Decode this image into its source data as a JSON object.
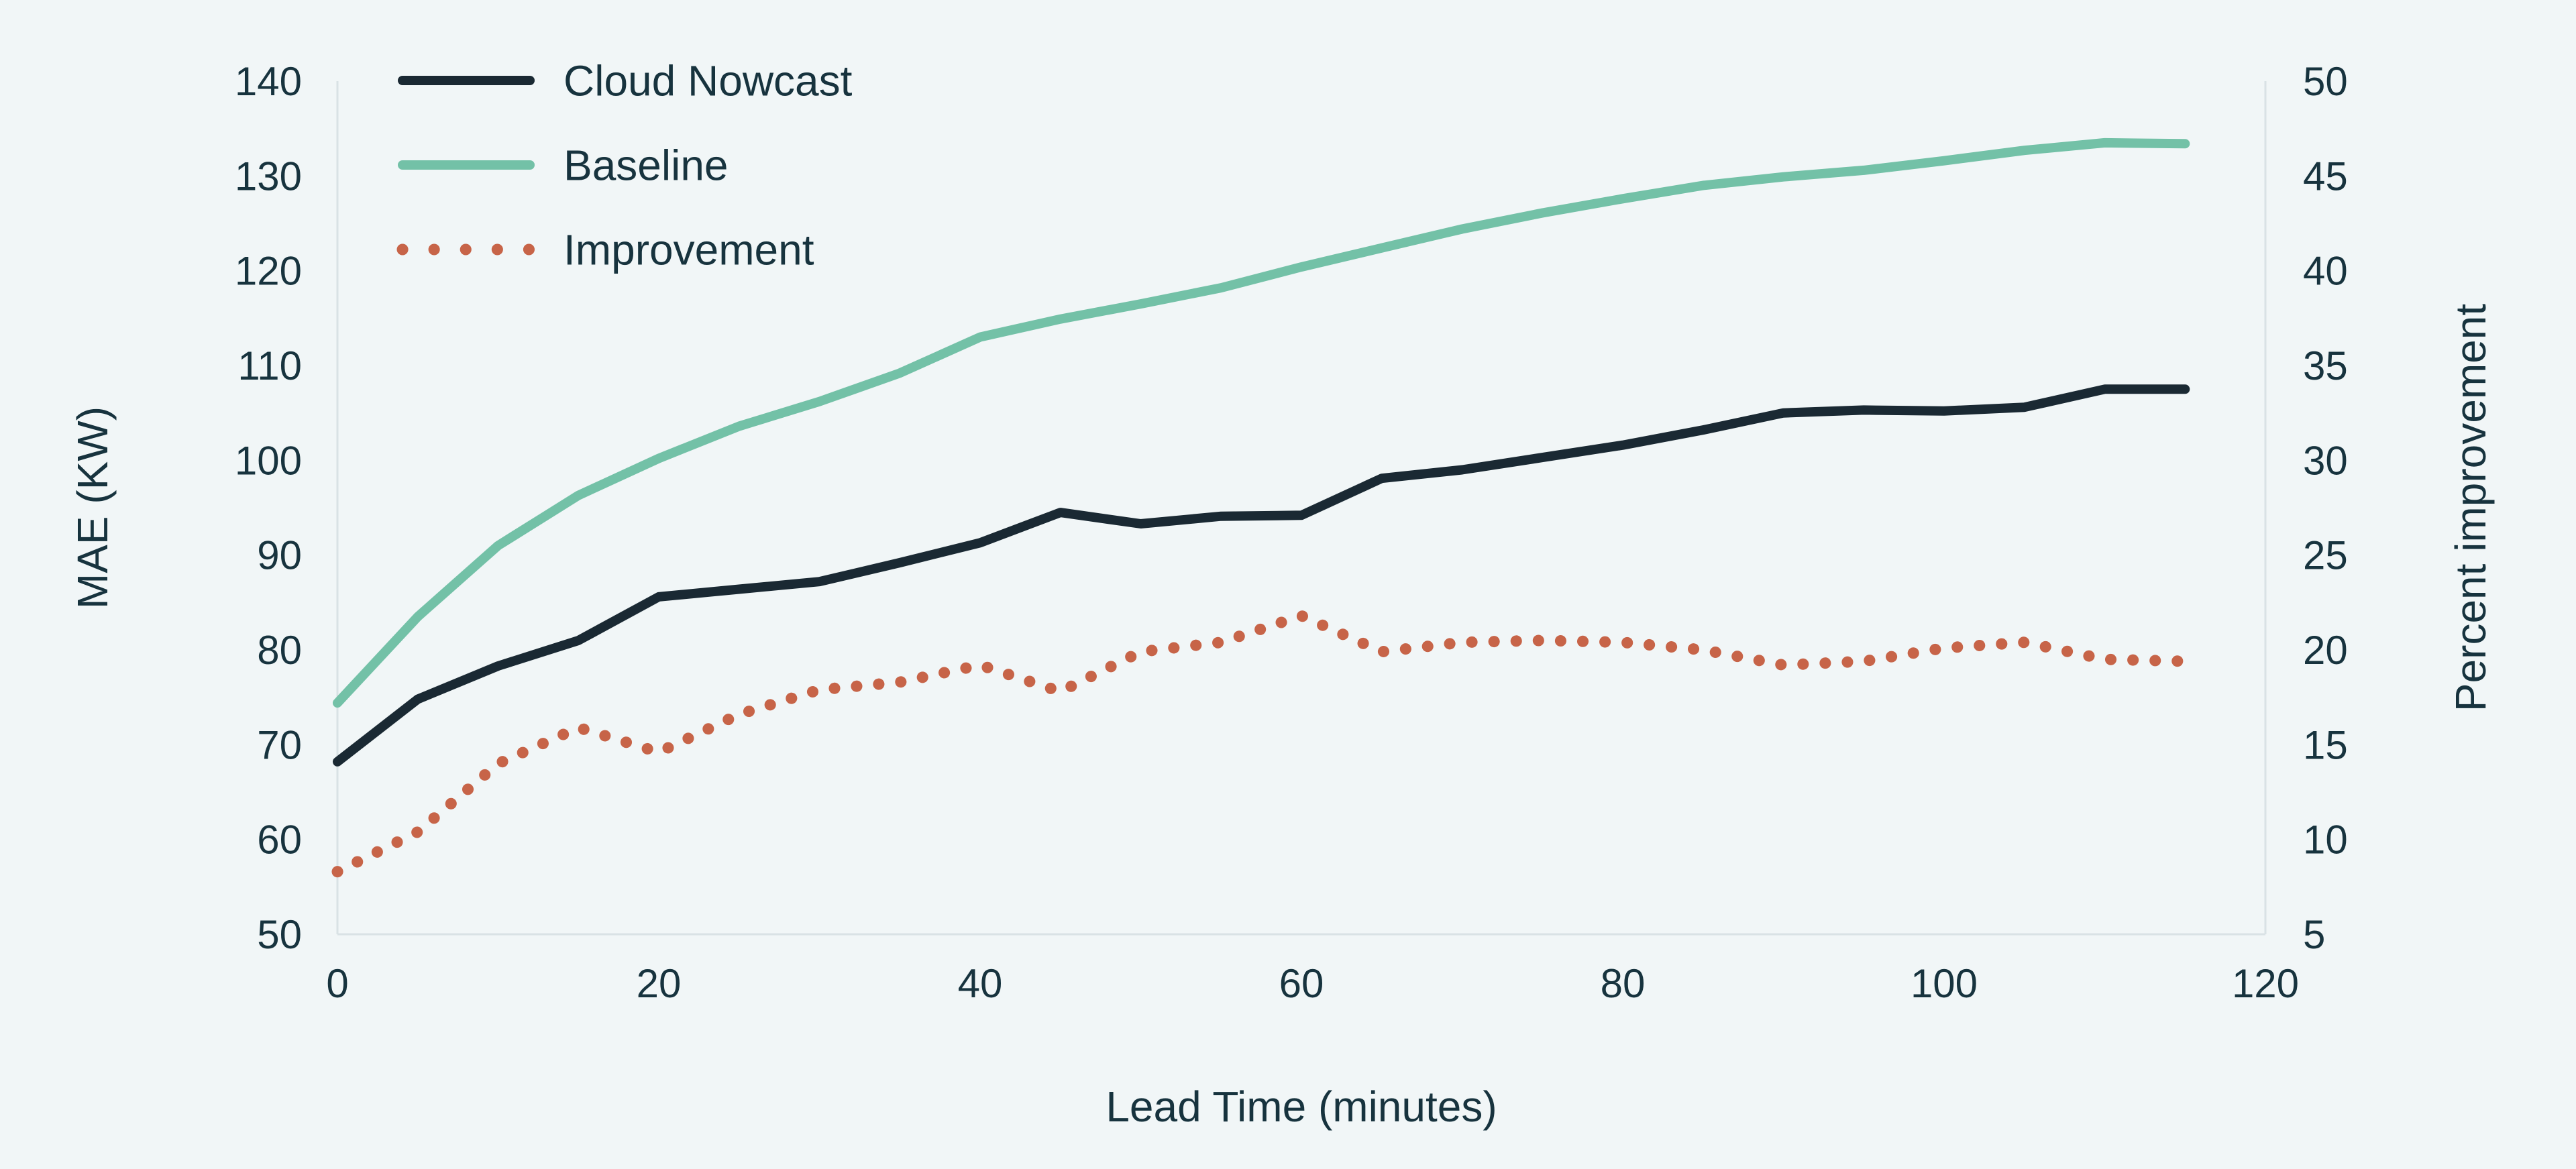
{
  "page": {
    "background_color": "#f1f6f7",
    "text_color": "#17333e",
    "axis_line_color": "#d9e2e5"
  },
  "legend": {
    "position": "top-left",
    "items": [
      {
        "label": "Cloud Nowcast",
        "color": "#1a2933",
        "style": "solid"
      },
      {
        "label": "Baseline",
        "color": "#73c1a7",
        "style": "solid"
      },
      {
        "label": "Improvement",
        "color": "#c76448",
        "style": "dotted"
      }
    ]
  },
  "chart_data": {
    "type": "line",
    "title": "",
    "xlabel": "Lead Time (minutes)",
    "ylabel_left": "MAE (KW)",
    "ylabel_right": "Percent improvement",
    "xlim": [
      0,
      120
    ],
    "ylim_left": [
      50,
      140
    ],
    "ylim_right": [
      5,
      50
    ],
    "xticks": [
      0,
      20,
      40,
      60,
      80,
      100,
      120
    ],
    "yticks_left": [
      50,
      60,
      70,
      80,
      90,
      100,
      110,
      120,
      130,
      140
    ],
    "yticks_right": [
      5,
      10,
      15,
      20,
      25,
      30,
      35,
      40,
      45,
      50
    ],
    "grid": false,
    "legend_position": "top-left",
    "x": [
      0,
      5,
      10,
      15,
      20,
      25,
      30,
      35,
      40,
      45,
      50,
      55,
      60,
      65,
      70,
      75,
      80,
      85,
      90,
      95,
      100,
      105,
      110,
      115
    ],
    "series": [
      {
        "name": "Cloud Nowcast",
        "axis": "left",
        "color": "#1a2933",
        "style": "solid",
        "values": [
          68.2,
          74.8,
          78.3,
          81.0,
          85.6,
          86.4,
          87.2,
          89.2,
          91.3,
          94.5,
          93.3,
          94.1,
          94.2,
          98.1,
          99.0,
          100.3,
          101.6,
          103.2,
          105.0,
          105.3,
          105.2,
          105.6,
          107.5,
          107.5
        ]
      },
      {
        "name": "Baseline",
        "axis": "left",
        "color": "#73c1a7",
        "style": "solid",
        "values": [
          74.4,
          83.5,
          91.0,
          96.3,
          100.2,
          103.6,
          106.2,
          109.2,
          113.0,
          114.9,
          116.5,
          118.2,
          120.4,
          122.4,
          124.4,
          126.1,
          127.6,
          129.0,
          129.9,
          130.6,
          131.6,
          132.7,
          133.5,
          133.4
        ]
      },
      {
        "name": "Improvement",
        "axis": "right",
        "color": "#c76448",
        "style": "dotted",
        "values": [
          8.3,
          10.4,
          14.0,
          15.9,
          14.6,
          16.6,
          17.9,
          18.3,
          19.2,
          17.8,
          19.9,
          20.4,
          21.8,
          19.9,
          20.4,
          20.5,
          20.4,
          20.0,
          19.2,
          19.4,
          20.1,
          20.4,
          19.5,
          19.4
        ]
      }
    ]
  }
}
